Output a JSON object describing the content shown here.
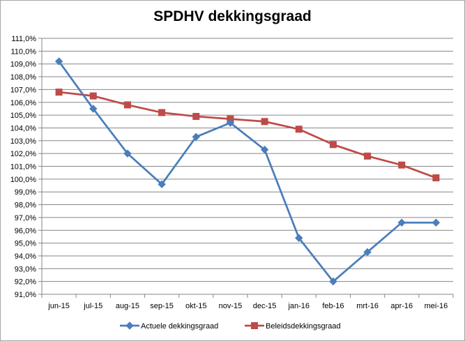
{
  "chart_data": {
    "type": "line",
    "title": "SPDHV dekkingsgraad",
    "xlabel": "",
    "ylabel": "",
    "categories": [
      "jun-15",
      "jul-15",
      "aug-15",
      "sep-15",
      "okt-15",
      "nov-15",
      "dec-15",
      "jan-16",
      "feb-16",
      "mrt-16",
      "apr-16",
      "mei-16"
    ],
    "ylim": [
      91.0,
      111.0
    ],
    "ytick_step": 1.0,
    "ytick_labels": [
      "91,0%",
      "92,0%",
      "93,0%",
      "94,0%",
      "95,0%",
      "96,0%",
      "97,0%",
      "98,0%",
      "99,0%",
      "100,0%",
      "101,0%",
      "102,0%",
      "103,0%",
      "104,0%",
      "105,0%",
      "106,0%",
      "107,0%",
      "108,0%",
      "109,0%",
      "110,0%",
      "111,0%"
    ],
    "grid": "horizontal",
    "legend_position": "bottom",
    "series": [
      {
        "name": "Actuele dekkingsgraad",
        "color": "#4a7ebb",
        "marker": "diamond",
        "values": [
          109.2,
          105.5,
          102.0,
          99.6,
          103.3,
          104.4,
          102.3,
          95.4,
          92.0,
          94.3,
          96.6,
          96.6
        ]
      },
      {
        "name": "Beleidsdekkingsgraad",
        "color": "#be4b48",
        "marker": "square",
        "values": [
          106.8,
          106.5,
          105.8,
          105.2,
          104.9,
          104.7,
          104.5,
          103.9,
          102.7,
          101.8,
          101.1,
          100.1
        ]
      }
    ]
  }
}
